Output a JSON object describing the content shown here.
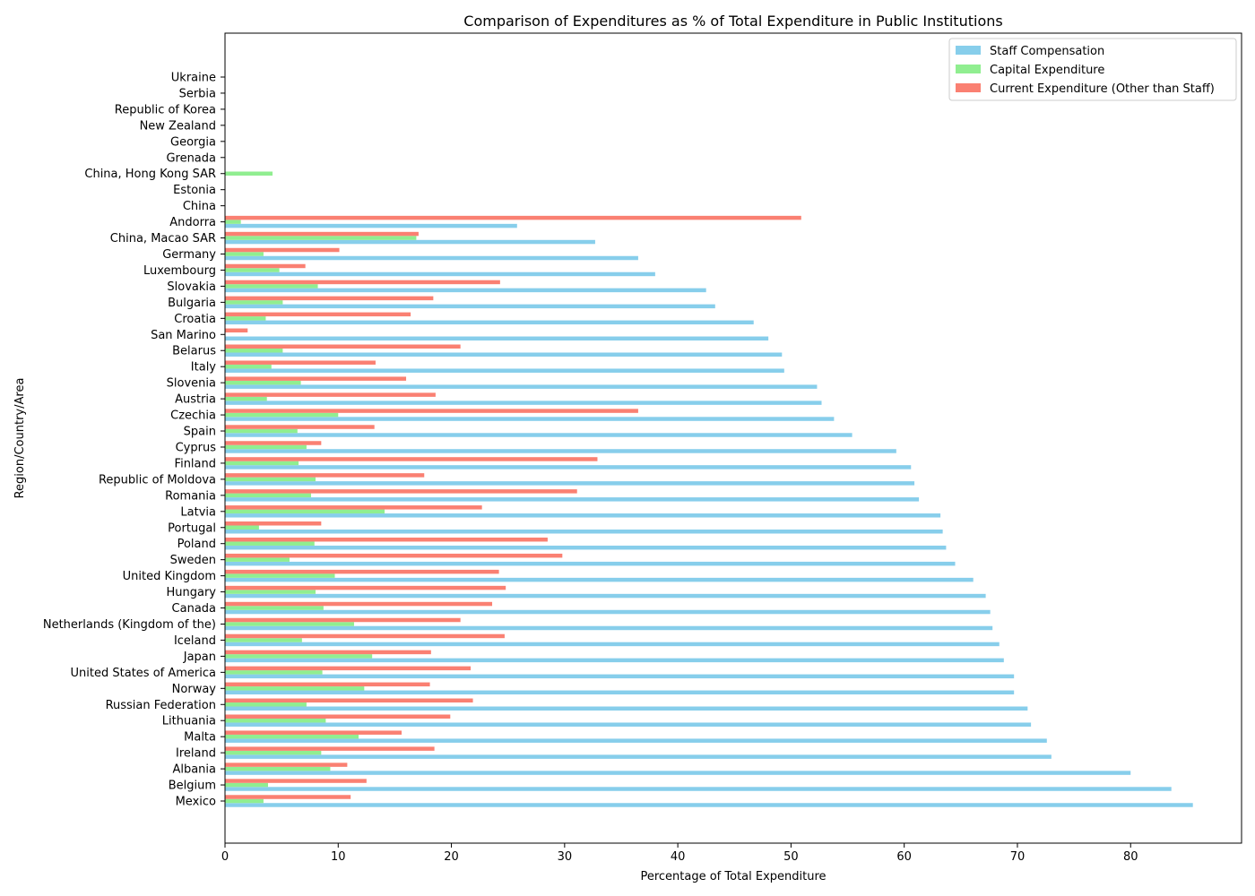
{
  "chart_data": {
    "type": "bar",
    "orientation": "horizontal",
    "title": "Comparison of Expenditures as % of Total Expenditure in Public Institutions",
    "xlabel": "Percentage of Total Expenditure",
    "ylabel": "Region/Country/Area",
    "xlim": [
      0,
      89.8
    ],
    "xticks": [
      0,
      10,
      20,
      30,
      40,
      50,
      60,
      70,
      80
    ],
    "grid": false,
    "legend_position": "top-right",
    "categories": [
      "Mexico",
      "Belgium",
      "Albania",
      "Ireland",
      "Malta",
      "Lithuania",
      "Russian Federation",
      "Norway",
      "United States of America",
      "Japan",
      "Iceland",
      "Netherlands (Kingdom of the)",
      "Canada",
      "Hungary",
      "United Kingdom",
      "Sweden",
      "Poland",
      "Portugal",
      "Latvia",
      "Romania",
      "Republic of Moldova",
      "Finland",
      "Cyprus",
      "Spain",
      "Czechia",
      "Austria",
      "Slovenia",
      "Italy",
      "Belarus",
      "San Marino",
      "Croatia",
      "Bulgaria",
      "Slovakia",
      "Luxembourg",
      "Germany",
      "China, Macao SAR",
      "Andorra",
      "China",
      "Estonia",
      "China, Hong Kong SAR",
      "Grenada",
      "Georgia",
      "New Zealand",
      "Republic of Korea",
      "Serbia",
      "Ukraine"
    ],
    "series": [
      {
        "name": "Staff Compensation",
        "color": "#87ceeb",
        "values": [
          85.5,
          83.6,
          80.0,
          73.0,
          72.6,
          71.2,
          70.9,
          69.7,
          69.7,
          68.8,
          68.4,
          67.8,
          67.6,
          67.2,
          66.1,
          64.5,
          63.7,
          63.4,
          63.2,
          61.3,
          60.9,
          60.6,
          59.3,
          55.4,
          53.8,
          52.7,
          52.3,
          49.4,
          49.2,
          48.0,
          46.7,
          43.3,
          42.5,
          38.0,
          36.5,
          32.7,
          25.8,
          0,
          0,
          0,
          0,
          0,
          0,
          0,
          0,
          0
        ]
      },
      {
        "name": "Capital Expenditure",
        "color": "#90ee90",
        "values": [
          3.4,
          3.8,
          9.3,
          8.5,
          11.8,
          8.9,
          7.2,
          12.3,
          8.6,
          13.0,
          6.8,
          11.4,
          8.7,
          8.0,
          9.7,
          5.7,
          7.9,
          3.0,
          14.1,
          7.6,
          8.0,
          6.5,
          7.2,
          6.4,
          10.0,
          3.7,
          6.7,
          4.1,
          5.1,
          0,
          3.6,
          5.1,
          8.2,
          4.8,
          3.4,
          16.9,
          1.4,
          0,
          0,
          4.2,
          0,
          0,
          0,
          0,
          0,
          0
        ]
      },
      {
        "name": "Current Expenditure (Other than Staff)",
        "color": "#fa8072",
        "values": [
          11.1,
          12.5,
          10.8,
          18.5,
          15.6,
          19.9,
          21.9,
          18.1,
          21.7,
          18.2,
          24.7,
          20.8,
          23.6,
          24.8,
          24.2,
          29.8,
          28.5,
          8.5,
          22.7,
          31.1,
          17.6,
          32.9,
          8.5,
          13.2,
          36.5,
          18.6,
          16.0,
          13.3,
          20.8,
          2.0,
          16.4,
          18.4,
          24.3,
          7.1,
          10.1,
          17.1,
          50.9,
          0,
          0,
          0,
          0,
          0,
          0,
          0,
          0,
          0
        ]
      }
    ]
  }
}
